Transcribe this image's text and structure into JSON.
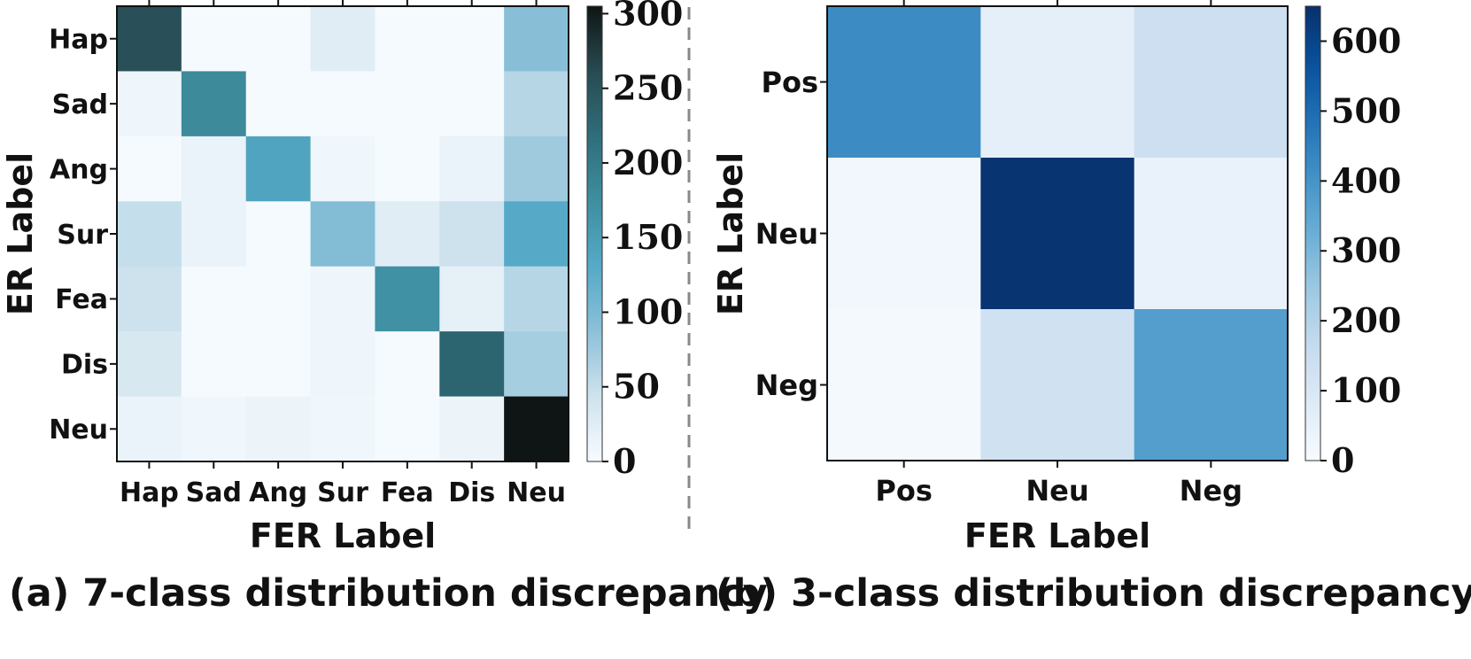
{
  "chart_data": [
    {
      "type": "heatmap",
      "caption": "(a) 7-class distribution discrepancy",
      "xlabel": "FER Label",
      "ylabel": "ER Label",
      "x_categories": [
        "Hap",
        "Sad",
        "Ang",
        "Sur",
        "Fea",
        "Dis",
        "Neu"
      ],
      "y_categories": [
        "Hap",
        "Sad",
        "Ang",
        "Sur",
        "Fea",
        "Dis",
        "Neu"
      ],
      "values": [
        [
          255,
          2,
          2,
          25,
          2,
          2,
          90
        ],
        [
          10,
          180,
          2,
          2,
          2,
          2,
          60
        ],
        [
          2,
          15,
          140,
          8,
          2,
          15,
          75
        ],
        [
          50,
          15,
          2,
          95,
          25,
          45,
          130
        ],
        [
          45,
          2,
          2,
          10,
          170,
          20,
          60
        ],
        [
          35,
          2,
          2,
          10,
          2,
          230,
          70
        ],
        [
          15,
          8,
          12,
          8,
          2,
          12,
          305
        ]
      ],
      "colorbar": {
        "min": 0,
        "max": 305,
        "ticks": [
          0,
          50,
          100,
          150,
          200,
          250,
          300
        ]
      },
      "colormap": [
        "#f7fbff",
        "#cfe3ee",
        "#8cc0d8",
        "#55aac8",
        "#3f8ea0",
        "#2e6e7a",
        "#284b52",
        "#0f1514"
      ]
    },
    {
      "type": "heatmap",
      "caption": "(b) 3-class distribution discrepancy",
      "xlabel": "FER Label",
      "ylabel": "ER Label",
      "x_categories": [
        "Pos",
        "Neu",
        "Neg"
      ],
      "y_categories": [
        "Pos",
        "Neu",
        "Neg"
      ],
      "values": [
        [
          420,
          60,
          140
        ],
        [
          20,
          640,
          45
        ],
        [
          10,
          130,
          370
        ]
      ],
      "colorbar": {
        "min": 0,
        "max": 650,
        "ticks": [
          0,
          100,
          200,
          300,
          400,
          500,
          600
        ]
      },
      "colormap": [
        "#f7fbff",
        "#deebf7",
        "#c6dbef",
        "#9ecae1",
        "#6baed6",
        "#4292c6",
        "#2171b5",
        "#08519c",
        "#08306b"
      ]
    }
  ],
  "divider": {
    "style": "dashed",
    "color": "#888888"
  }
}
